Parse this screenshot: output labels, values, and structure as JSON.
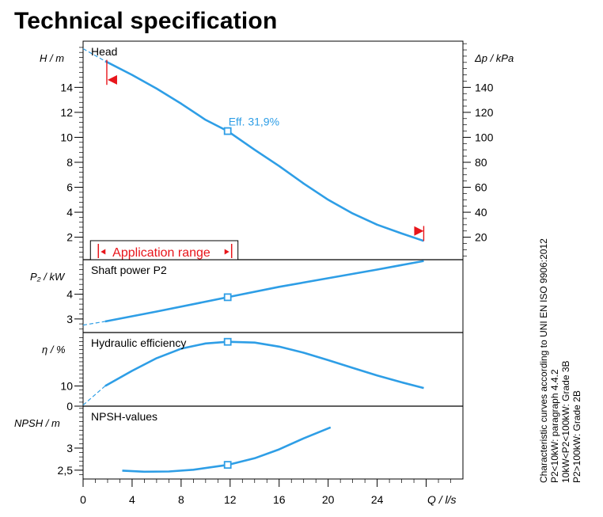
{
  "page_title": "Technical specification",
  "notes": [
    "Characteristic curves according to UNI EN ISO 9906:2012",
    "P2<10kW:  paragraph 4.4.2",
    "10kW<P2<100kW: Grade 3B",
    "P2>100kW: Grade 2B"
  ],
  "colors": {
    "curve": "#2e9ee6",
    "marker": "#e8151b",
    "axis": "#000000"
  },
  "chart_data": {
    "type": "line",
    "x": {
      "label": "Q / l/s",
      "range": [
        0,
        31
      ],
      "ticks": [
        0,
        4,
        8,
        12,
        16,
        20,
        24
      ],
      "tick_labels": [
        "0",
        "4",
        "8",
        "12",
        "16",
        "20",
        "24"
      ]
    },
    "operating_point_q": 11.8,
    "panels": [
      {
        "name": "head",
        "title": "Head",
        "ylabel": "H / m",
        "yrange": [
          0.2,
          17.7
        ],
        "ticks": [
          2,
          4,
          6,
          8,
          10,
          12,
          14
        ],
        "tick_labels": [
          "2",
          "4",
          "6",
          "8",
          "10",
          "12",
          "14"
        ],
        "right_axis": {
          "label": "Δp / kPa",
          "ticks": [
            20,
            40,
            60,
            80,
            100,
            120,
            140
          ],
          "tick_labels": [
            "20",
            "40",
            "60",
            "80",
            "100",
            "120",
            "140"
          ],
          "kpa_per_m": 10
        },
        "curve": {
          "x": [
            1.8,
            4,
            6,
            8,
            10,
            11.8,
            14,
            16,
            18,
            20,
            22,
            24,
            26,
            27.8
          ],
          "y": [
            16.1,
            15.0,
            13.9,
            12.7,
            11.4,
            10.5,
            9.0,
            7.7,
            6.3,
            5.0,
            3.9,
            3.0,
            2.3,
            1.7
          ]
        },
        "extension": {
          "x": [
            0,
            1.8
          ],
          "y": [
            17.1,
            16.1
          ]
        },
        "annotation": "Eff.  31,9%",
        "application_range": {
          "label": "Application range",
          "from": 0.6,
          "to": 11.8,
          "left_marker_x": 2.0,
          "right_marker_x": 27.8,
          "left_marker_y": 14.6,
          "right_marker_y": 2.5
        }
      },
      {
        "name": "shaft-power",
        "title": "Shaft power P2",
        "ylabel": "P₂ / kW",
        "yrange": [
          2.45,
          5.4
        ],
        "ticks": [
          3,
          4
        ],
        "tick_labels": [
          "3",
          "4"
        ],
        "curve": {
          "x": [
            1.8,
            6,
            11.8,
            16,
            20,
            24,
            27.8
          ],
          "y": [
            2.9,
            3.3,
            3.88,
            4.3,
            4.65,
            5.0,
            5.35
          ]
        },
        "extension": {
          "x": [
            0,
            1.8
          ],
          "y": [
            2.75,
            2.9
          ]
        }
      },
      {
        "name": "hydraulic-efficiency",
        "title": "Hydraulic efficiency",
        "ylabel": "η / %",
        "yrange": [
          0,
          36.5
        ],
        "ticks": [
          0,
          10
        ],
        "tick_labels": [
          "0",
          "10"
        ],
        "curve": {
          "x": [
            1.8,
            4,
            6,
            8,
            10,
            11.8,
            14,
            16,
            18,
            20,
            22,
            24,
            26,
            27.8
          ],
          "y": [
            10.0,
            17.5,
            23.8,
            28.5,
            31.1,
            31.9,
            31.5,
            29.5,
            26.5,
            22.8,
            19.0,
            15.2,
            11.8,
            9.0
          ]
        },
        "extension": {
          "x": [
            0,
            1.8
          ],
          "y": [
            0.5,
            10.0
          ]
        }
      },
      {
        "name": "npsh",
        "title": "NPSH-values",
        "ylabel": "NPSH  / m",
        "yrange": [
          2.3,
          3.95
        ],
        "ticks": [
          2.5,
          3
        ],
        "tick_labels": [
          "2,5",
          "3"
        ],
        "curve": {
          "x": [
            3.2,
            5,
            7,
            9,
            11.8,
            14,
            16,
            18,
            20.2
          ],
          "y": [
            2.49,
            2.465,
            2.47,
            2.51,
            2.62,
            2.77,
            2.97,
            3.22,
            3.47
          ]
        }
      }
    ]
  }
}
